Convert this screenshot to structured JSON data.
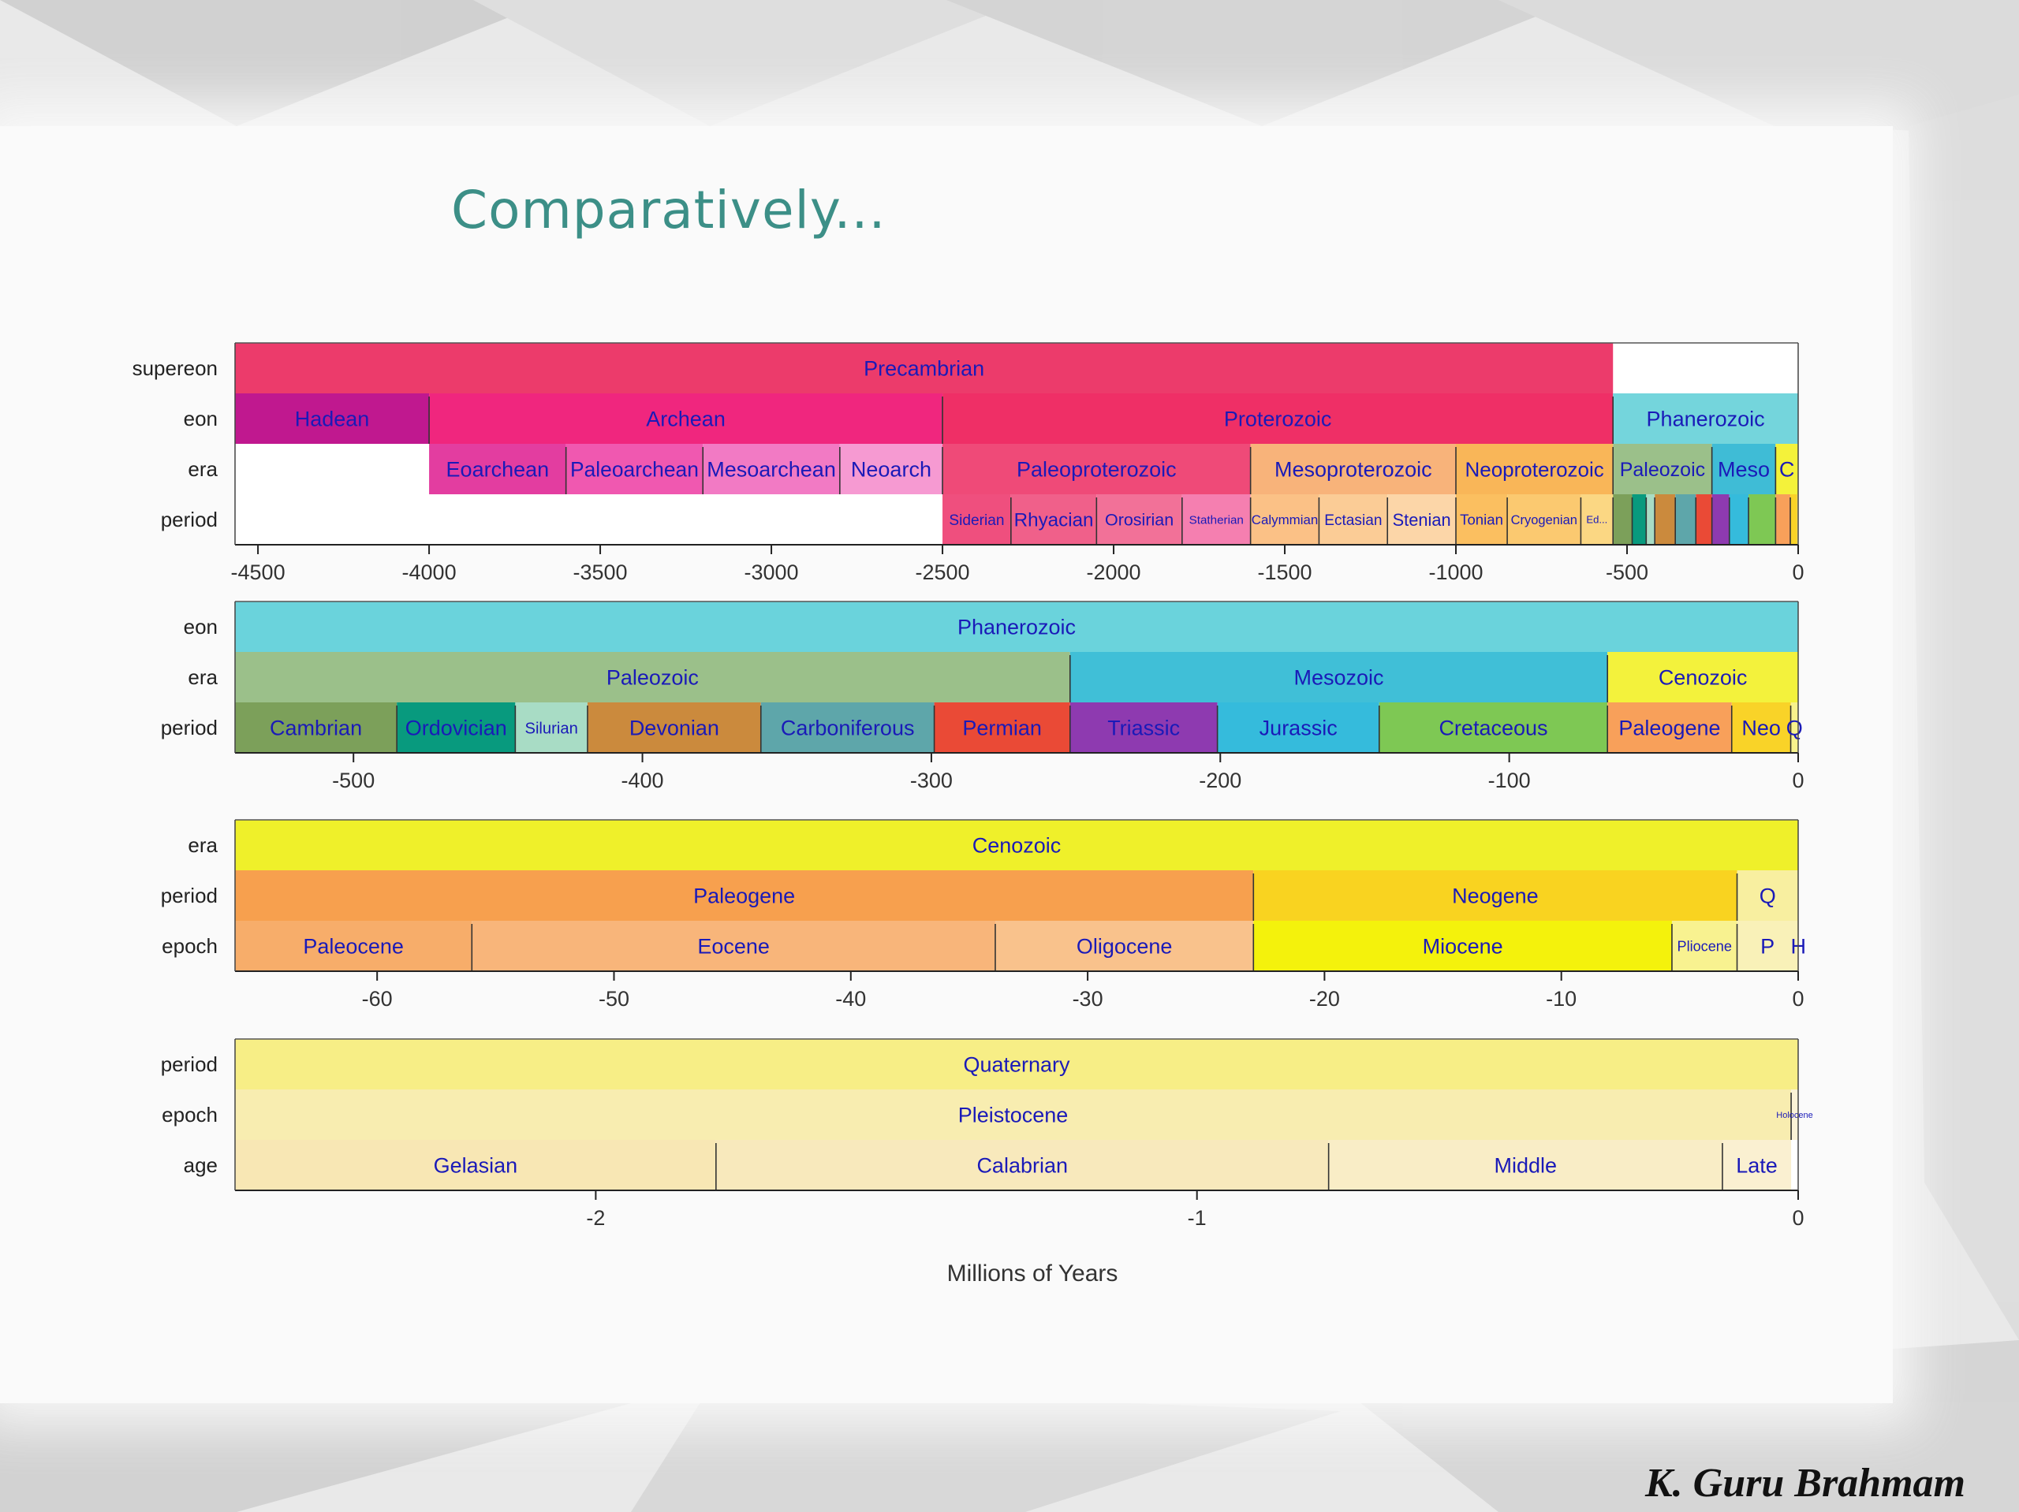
{
  "slide": {
    "title": "Comparatively...",
    "author": "K. Guru Brahmam"
  },
  "chart_data": {
    "type": "timeline",
    "xlabel": "Millions of Years",
    "panels": [
      {
        "id": "precambrian-overview",
        "xlim": [
          -4567,
          0
        ],
        "ticks": [
          -4500,
          -4000,
          -3500,
          -3000,
          -2500,
          -2000,
          -1500,
          -1000,
          -500,
          0
        ],
        "rows": [
          {
            "label": "supereon",
            "segments": [
              {
                "name": "Precambrian",
                "start": -4567,
                "end": -541,
                "color": "#ec3b6b"
              }
            ]
          },
          {
            "label": "eon",
            "segments": [
              {
                "name": "Hadean",
                "start": -4567,
                "end": -4000,
                "color": "#c0188f"
              },
              {
                "name": "Archean",
                "start": -4000,
                "end": -2500,
                "color": "#f0267e"
              },
              {
                "name": "Proterozoic",
                "start": -2500,
                "end": -541,
                "color": "#ef2f66"
              },
              {
                "name": "Phanerozoic",
                "start": -541,
                "end": 0,
                "color": "#74d5dc"
              }
            ]
          },
          {
            "label": "era",
            "segments": [
              {
                "name": "Eoarchean",
                "start": -4000,
                "end": -3600,
                "color": "#e33da0"
              },
              {
                "name": "Paleoarchean",
                "start": -3600,
                "end": -3200,
                "color": "#f058b0"
              },
              {
                "name": "Mesoarchean",
                "start": -3200,
                "end": -2800,
                "color": "#f27ac4"
              },
              {
                "name": "Neoarch",
                "start": -2800,
                "end": -2500,
                "color": "#f69ad2"
              },
              {
                "name": "Paleoproterozoic",
                "start": -2500,
                "end": -1600,
                "color": "#ef4a78"
              },
              {
                "name": "Mesoproterozoic",
                "start": -1600,
                "end": -1000,
                "color": "#f8b37a"
              },
              {
                "name": "Neoproterozoic",
                "start": -1000,
                "end": -541,
                "color": "#f9b658"
              },
              {
                "name": "Paleozoic",
                "start": -541,
                "end": -252,
                "color": "#9bc08a"
              },
              {
                "name": "Meso",
                "start": -252,
                "end": -66,
                "color": "#3fbcd6"
              },
              {
                "name": "C",
                "start": -66,
                "end": 0,
                "color": "#f4f23a"
              }
            ]
          },
          {
            "label": "period",
            "segments": [
              {
                "name": "Siderian",
                "start": -2500,
                "end": -2300,
                "color": "#ef4f7e"
              },
              {
                "name": "Rhyacian",
                "start": -2300,
                "end": -2050,
                "color": "#f0608a"
              },
              {
                "name": "Orosirian",
                "start": -2050,
                "end": -1800,
                "color": "#f27198"
              },
              {
                "name": "Statherian",
                "start": -1800,
                "end": -1600,
                "color": "#f57fb0"
              },
              {
                "name": "Calymmian",
                "start": -1600,
                "end": -1400,
                "color": "#fbc186"
              },
              {
                "name": "Ectasian",
                "start": -1400,
                "end": -1200,
                "color": "#fbcc96"
              },
              {
                "name": "Stenian",
                "start": -1200,
                "end": -1000,
                "color": "#fcd6a8"
              },
              {
                "name": "Tonian",
                "start": -1000,
                "end": -850,
                "color": "#fbbf60"
              },
              {
                "name": "Cryogenian",
                "start": -850,
                "end": -635,
                "color": "#fbc970"
              },
              {
                "name": "Ed...",
                "start": -635,
                "end": -541,
                "color": "#fbd783"
              },
              {
                "name": "",
                "start": -541,
                "end": -485,
                "color": "#7ca05a"
              },
              {
                "name": "",
                "start": -485,
                "end": -444,
                "color": "#089a7e"
              },
              {
                "name": "",
                "start": -444,
                "end": -419,
                "color": "#a8dcc5"
              },
              {
                "name": "",
                "start": -419,
                "end": -359,
                "color": "#cb8a3d"
              },
              {
                "name": "",
                "start": -359,
                "end": -299,
                "color": "#5ea6aa"
              },
              {
                "name": "",
                "start": -299,
                "end": -252,
                "color": "#ea4a36"
              },
              {
                "name": "",
                "start": -252,
                "end": -201,
                "color": "#8e3ab0"
              },
              {
                "name": "",
                "start": -201,
                "end": -145,
                "color": "#35bbdc"
              },
              {
                "name": "",
                "start": -145,
                "end": -66,
                "color": "#7ec854"
              },
              {
                "name": "",
                "start": -66,
                "end": -23,
                "color": "#f8a05a"
              },
              {
                "name": "",
                "start": -23,
                "end": -2.58,
                "color": "#f9d328"
              },
              {
                "name": "",
                "start": -2.58,
                "end": 0,
                "color": "#f8f28c"
              }
            ]
          }
        ]
      },
      {
        "id": "phanerozoic",
        "xlim": [
          -541,
          0
        ],
        "ticks": [
          -500,
          -400,
          -300,
          -200,
          -100,
          0
        ],
        "rows": [
          {
            "label": "eon",
            "segments": [
              {
                "name": "Phanerozoic",
                "start": -541,
                "end": 0,
                "color": "#6ad3dc"
              }
            ]
          },
          {
            "label": "era",
            "segments": [
              {
                "name": "Paleozoic",
                "start": -541,
                "end": -252,
                "color": "#9bc08a"
              },
              {
                "name": "Mesozoic",
                "start": -252,
                "end": -66,
                "color": "#40bfd7"
              },
              {
                "name": "Cenozoic",
                "start": -66,
                "end": 0,
                "color": "#f3f23c"
              }
            ]
          },
          {
            "label": "period",
            "segments": [
              {
                "name": "Cambrian",
                "start": -541,
                "end": -485,
                "color": "#7ca05a"
              },
              {
                "name": "Ordovician",
                "start": -485,
                "end": -444,
                "color": "#089a7e"
              },
              {
                "name": "Silurian",
                "start": -444,
                "end": -419,
                "color": "#a8dcc5"
              },
              {
                "name": "Devonian",
                "start": -419,
                "end": -359,
                "color": "#cb8a3d"
              },
              {
                "name": "Carboniferous",
                "start": -359,
                "end": -299,
                "color": "#5ea6aa"
              },
              {
                "name": "Permian",
                "start": -299,
                "end": -252,
                "color": "#ea4a36"
              },
              {
                "name": "Triassic",
                "start": -252,
                "end": -201,
                "color": "#8e3ab0"
              },
              {
                "name": "Jurassic",
                "start": -201,
                "end": -145,
                "color": "#35bbdc"
              },
              {
                "name": "Cretaceous",
                "start": -145,
                "end": -66,
                "color": "#7ec854"
              },
              {
                "name": "Paleogene",
                "start": -66,
                "end": -23,
                "color": "#f8a05a"
              },
              {
                "name": "Neo",
                "start": -23,
                "end": -2.58,
                "color": "#f9d328"
              },
              {
                "name": "Q",
                "start": -2.58,
                "end": 0,
                "color": "#f8f28c"
              }
            ]
          }
        ]
      },
      {
        "id": "cenozoic",
        "xlim": [
          -66,
          0
        ],
        "ticks": [
          -60,
          -50,
          -40,
          -30,
          -20,
          -10,
          0
        ],
        "rows": [
          {
            "label": "era",
            "segments": [
              {
                "name": "Cenozoic",
                "start": -66,
                "end": 0,
                "color": "#eff02a"
              }
            ]
          },
          {
            "label": "period",
            "segments": [
              {
                "name": "Paleogene",
                "start": -66,
                "end": -23,
                "color": "#f7a04e"
              },
              {
                "name": "Neogene",
                "start": -23,
                "end": -2.58,
                "color": "#f9d320"
              },
              {
                "name": "Q",
                "start": -2.58,
                "end": 0,
                "color": "#f8efa0"
              }
            ]
          },
          {
            "label": "epoch",
            "segments": [
              {
                "name": "Paleocene",
                "start": -66,
                "end": -56,
                "color": "#f7ad6a"
              },
              {
                "name": "Eocene",
                "start": -56,
                "end": -33.9,
                "color": "#f8b57a"
              },
              {
                "name": "Oligocene",
                "start": -33.9,
                "end": -23,
                "color": "#f9c28c"
              },
              {
                "name": "Miocene",
                "start": -23,
                "end": -5.33,
                "color": "#f4f20c"
              },
              {
                "name": "Pliocene",
                "start": -5.33,
                "end": -2.58,
                "color": "#f8f290"
              },
              {
                "name": "P",
                "start": -2.58,
                "end": -0.0117,
                "color": "#f9f1b8"
              },
              {
                "name": "H",
                "start": -0.0117,
                "end": 0,
                "color": "#fbf2d0"
              }
            ]
          }
        ]
      },
      {
        "id": "quaternary",
        "xlim": [
          -2.6,
          0
        ],
        "ticks": [
          -2,
          -1,
          0
        ],
        "rows": [
          {
            "label": "period",
            "segments": [
              {
                "name": "Quaternary",
                "start": -2.6,
                "end": 0,
                "color": "#f7ee86"
              }
            ]
          },
          {
            "label": "epoch",
            "segments": [
              {
                "name": "Pleistocene",
                "start": -2.6,
                "end": -0.0117,
                "color": "#f8edb0"
              },
              {
                "name": "Holocene",
                "start": -0.0117,
                "end": 0,
                "color": "#fbf3d6"
              }
            ]
          },
          {
            "label": "age",
            "segments": [
              {
                "name": "Gelasian",
                "start": -2.6,
                "end": -1.8,
                "color": "#f8e7b4"
              },
              {
                "name": "Calabrian",
                "start": -1.8,
                "end": -0.781,
                "color": "#f8e9bc"
              },
              {
                "name": "Middle",
                "start": -0.781,
                "end": -0.126,
                "color": "#f9edc6"
              },
              {
                "name": "Late",
                "start": -0.126,
                "end": -0.0117,
                "color": "#faf0d1"
              }
            ]
          }
        ]
      }
    ]
  }
}
